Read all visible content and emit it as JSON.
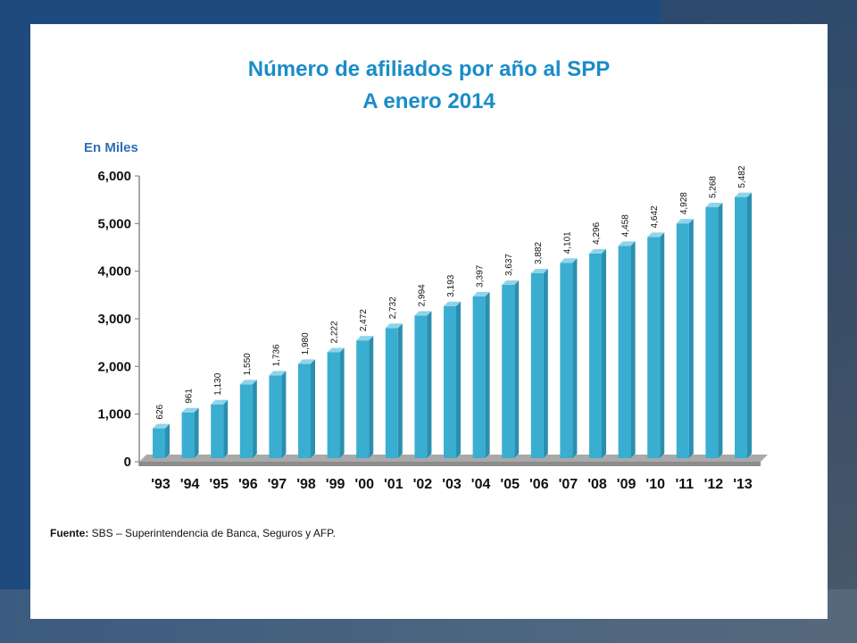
{
  "slide": {
    "title_line1": "Número de afiliados por año al SPP",
    "title_line2": "A enero 2014",
    "units_label": "En Miles",
    "source_label": "Fuente:",
    "source_text": " SBS – Superintendencia de Banca, Seguros y AFP."
  },
  "colors": {
    "bar_front": "#3aaed0",
    "bar_side": "#2a8fb0",
    "bar_top": "#8fd4ea",
    "floor": "#8c8c8c",
    "title": "#1a8cc8",
    "units": "#2f6fb7"
  },
  "chart_data": {
    "type": "bar",
    "title": "Número de afiliados por año al SPP",
    "subtitle": "A enero 2014",
    "ylabel": "En Miles",
    "ylim": [
      0,
      6000
    ],
    "yticks": [
      "0",
      "1,000",
      "2,000",
      "3,000",
      "4,000",
      "5,000",
      "6,000"
    ],
    "ytick_values": [
      0,
      1000,
      2000,
      3000,
      4000,
      5000,
      6000
    ],
    "categories": [
      "'93",
      "'94",
      "'95",
      "'96",
      "'97",
      "'98",
      "'99",
      "'00",
      "'01",
      "'02",
      "'03",
      "'04",
      "'05",
      "'06",
      "'07",
      "'08",
      "'09",
      "'10",
      "'11",
      "'12",
      "'13"
    ],
    "values": [
      626,
      961,
      1130,
      1550,
      1736,
      1980,
      2222,
      2472,
      2732,
      2994,
      3193,
      3397,
      3637,
      3882,
      4101,
      4296,
      4458,
      4642,
      4928,
      5268,
      5482
    ],
    "data_labels": [
      "626",
      "961",
      "1,130",
      "1,550",
      "1,736",
      "1,980",
      "2,222",
      "2,472",
      "2,732",
      "2,994",
      "3,193",
      "3,397",
      "3,637",
      "3,882",
      "4,101",
      "4,296",
      "4,458",
      "4,642",
      "4,928",
      "5,268",
      "5,482"
    ],
    "grid": false,
    "legend": "none"
  }
}
